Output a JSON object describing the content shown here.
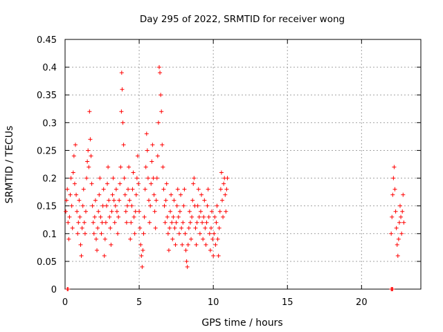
{
  "chart_data": {
    "type": "scatter",
    "title": "Day 295 of 2022, SRMTID for receiver wong",
    "xlabel": "GPS time / hours",
    "ylabel": "SRMTID / TECUs",
    "xlim": [
      0,
      24
    ],
    "ylim": [
      0,
      0.45
    ],
    "xticks": [
      0,
      5,
      10,
      15,
      20
    ],
    "xtick_labels": [
      "0",
      "5",
      "10",
      "15",
      "20"
    ],
    "yticks": [
      0,
      0.05,
      0.1,
      0.15,
      0.2,
      0.25,
      0.3,
      0.35,
      0.4,
      0.45
    ],
    "ytick_labels": [
      "0",
      "0.05",
      "0.1",
      "0.15",
      "0.2",
      "0.25",
      "0.3",
      "0.35",
      "0.4",
      "0.45"
    ],
    "grid": true,
    "marker": "+",
    "marker_color": "#ff0000",
    "series": [
      {
        "name": "SRMTID",
        "points": [
          [
            0.05,
            0.14
          ],
          [
            0.1,
            0.16
          ],
          [
            0.15,
            0.18
          ],
          [
            0.2,
            0.12
          ],
          [
            0.25,
            0.09
          ],
          [
            0.3,
            0.13
          ],
          [
            0.35,
            0.17
          ],
          [
            0.4,
            0.2
          ],
          [
            0.45,
            0.15
          ],
          [
            0.5,
            0.11
          ],
          [
            0.55,
            0.21
          ],
          [
            0.6,
            0.24
          ],
          [
            0.65,
            0.19
          ],
          [
            0.7,
            0.26
          ],
          [
            0.75,
            0.17
          ],
          [
            0.8,
            0.14
          ],
          [
            0.85,
            0.1
          ],
          [
            0.9,
            0.12
          ],
          [
            0.95,
            0.16
          ],
          [
            1.0,
            0.13
          ],
          [
            1.05,
            0.08
          ],
          [
            1.1,
            0.06
          ],
          [
            1.15,
            0.11
          ],
          [
            1.2,
            0.15
          ],
          [
            1.25,
            0.18
          ],
          [
            1.3,
            0.12
          ],
          [
            1.35,
            0.1
          ],
          [
            1.4,
            0.14
          ],
          [
            1.45,
            0.2
          ],
          [
            1.5,
            0.23
          ],
          [
            1.55,
            0.25
          ],
          [
            1.6,
            0.22
          ],
          [
            1.65,
            0.32
          ],
          [
            1.7,
            0.27
          ],
          [
            1.75,
            0.24
          ],
          [
            1.8,
            0.19
          ],
          [
            1.85,
            0.15
          ],
          [
            1.9,
            0.12
          ],
          [
            1.95,
            0.1
          ],
          [
            2.0,
            0.13
          ],
          [
            2.05,
            0.16
          ],
          [
            2.1,
            0.09
          ],
          [
            2.15,
            0.07
          ],
          [
            2.2,
            0.11
          ],
          [
            2.25,
            0.14
          ],
          [
            2.3,
            0.17
          ],
          [
            2.35,
            0.2
          ],
          [
            2.4,
            0.13
          ],
          [
            2.45,
            0.1
          ],
          [
            2.5,
            0.12
          ],
          [
            2.55,
            0.15
          ],
          [
            2.6,
            0.18
          ],
          [
            2.65,
            0.06
          ],
          [
            2.7,
            0.09
          ],
          [
            2.75,
            0.12
          ],
          [
            2.8,
            0.15
          ],
          [
            2.85,
            0.19
          ],
          [
            2.9,
            0.22
          ],
          [
            2.95,
            0.16
          ],
          [
            3.0,
            0.13
          ],
          [
            3.05,
            0.11
          ],
          [
            3.1,
            0.08
          ],
          [
            3.15,
            0.14
          ],
          [
            3.2,
            0.17
          ],
          [
            3.25,
            0.2
          ],
          [
            3.3,
            0.16
          ],
          [
            3.35,
            0.12
          ],
          [
            3.4,
            0.15
          ],
          [
            3.45,
            0.18
          ],
          [
            3.5,
            0.14
          ],
          [
            3.55,
            0.1
          ],
          [
            3.6,
            0.13
          ],
          [
            3.65,
            0.16
          ],
          [
            3.7,
            0.19
          ],
          [
            3.75,
            0.22
          ],
          [
            3.8,
            0.32
          ],
          [
            3.82,
            0.39
          ],
          [
            3.85,
            0.36
          ],
          [
            3.9,
            0.3
          ],
          [
            3.95,
            0.26
          ],
          [
            4.0,
            0.2
          ],
          [
            4.05,
            0.17
          ],
          [
            4.1,
            0.14
          ],
          [
            4.15,
            0.12
          ],
          [
            4.2,
            0.15
          ],
          [
            4.25,
            0.18
          ],
          [
            4.3,
            0.22
          ],
          [
            4.35,
            0.16
          ],
          [
            4.4,
            0.09
          ],
          [
            4.45,
            0.12
          ],
          [
            4.5,
            0.15
          ],
          [
            4.55,
            0.18
          ],
          [
            4.6,
            0.21
          ],
          [
            4.65,
            0.13
          ],
          [
            4.7,
            0.1
          ],
          [
            4.75,
            0.14
          ],
          [
            4.8,
            0.17
          ],
          [
            4.85,
            0.2
          ],
          [
            4.9,
            0.24
          ],
          [
            4.95,
            0.19
          ],
          [
            5.0,
            0.14
          ],
          [
            5.05,
            0.11
          ],
          [
            5.1,
            0.08
          ],
          [
            5.15,
            0.06
          ],
          [
            5.2,
            0.04
          ],
          [
            5.25,
            0.07
          ],
          [
            5.3,
            0.1
          ],
          [
            5.35,
            0.13
          ],
          [
            5.4,
            0.18
          ],
          [
            5.45,
            0.22
          ],
          [
            5.5,
            0.28
          ],
          [
            5.55,
            0.25
          ],
          [
            5.6,
            0.2
          ],
          [
            5.65,
            0.16
          ],
          [
            5.7,
            0.12
          ],
          [
            5.75,
            0.15
          ],
          [
            5.8,
            0.19
          ],
          [
            5.85,
            0.23
          ],
          [
            5.9,
            0.26
          ],
          [
            5.95,
            0.2
          ],
          [
            6.0,
            0.17
          ],
          [
            6.05,
            0.14
          ],
          [
            6.1,
            0.11
          ],
          [
            6.15,
            0.16
          ],
          [
            6.2,
            0.2
          ],
          [
            6.25,
            0.24
          ],
          [
            6.3,
            0.3
          ],
          [
            6.35,
            0.4
          ],
          [
            6.4,
            0.39
          ],
          [
            6.45,
            0.35
          ],
          [
            6.5,
            0.32
          ],
          [
            6.55,
            0.26
          ],
          [
            6.6,
            0.22
          ],
          [
            6.65,
            0.18
          ],
          [
            6.7,
            0.15
          ],
          [
            6.75,
            0.12
          ],
          [
            6.8,
            0.16
          ],
          [
            6.85,
            0.19
          ],
          [
            6.9,
            0.13
          ],
          [
            6.95,
            0.1
          ],
          [
            7.0,
            0.07
          ],
          [
            7.05,
            0.11
          ],
          [
            7.1,
            0.14
          ],
          [
            7.15,
            0.17
          ],
          [
            7.2,
            0.12
          ],
          [
            7.25,
            0.09
          ],
          [
            7.3,
            0.13
          ],
          [
            7.35,
            0.16
          ],
          [
            7.4,
            0.11
          ],
          [
            7.45,
            0.08
          ],
          [
            7.5,
            0.12
          ],
          [
            7.55,
            0.15
          ],
          [
            7.6,
            0.18
          ],
          [
            7.65,
            0.13
          ],
          [
            7.7,
            0.1
          ],
          [
            7.75,
            0.14
          ],
          [
            7.8,
            0.17
          ],
          [
            7.85,
            0.11
          ],
          [
            7.9,
            0.08
          ],
          [
            7.95,
            0.12
          ],
          [
            8.0,
            0.15
          ],
          [
            8.05,
            0.18
          ],
          [
            8.1,
            0.1
          ],
          [
            8.15,
            0.07
          ],
          [
            8.2,
            0.05
          ],
          [
            8.25,
            0.04
          ],
          [
            8.3,
            0.08
          ],
          [
            8.35,
            0.11
          ],
          [
            8.4,
            0.14
          ],
          [
            8.45,
            0.12
          ],
          [
            8.5,
            0.09
          ],
          [
            8.55,
            0.13
          ],
          [
            8.6,
            0.16
          ],
          [
            8.65,
            0.19
          ],
          [
            8.7,
            0.2
          ],
          [
            8.75,
            0.15
          ],
          [
            8.8,
            0.11
          ],
          [
            8.85,
            0.08
          ],
          [
            8.9,
            0.12
          ],
          [
            8.95,
            0.15
          ],
          [
            9.0,
            0.18
          ],
          [
            9.05,
            0.13
          ],
          [
            9.1,
            0.1
          ],
          [
            9.15,
            0.14
          ],
          [
            9.2,
            0.17
          ],
          [
            9.25,
            0.12
          ],
          [
            9.3,
            0.09
          ],
          [
            9.35,
            0.13
          ],
          [
            9.4,
            0.16
          ],
          [
            9.45,
            0.11
          ],
          [
            9.5,
            0.08
          ],
          [
            9.55,
            0.12
          ],
          [
            9.6,
            0.15
          ],
          [
            9.65,
            0.18
          ],
          [
            9.7,
            0.13
          ],
          [
            9.75,
            0.1
          ],
          [
            9.8,
            0.07
          ],
          [
            9.85,
            0.11
          ],
          [
            9.9,
            0.14
          ],
          [
            9.95,
            0.09
          ],
          [
            10.0,
            0.06
          ],
          [
            10.05,
            0.1
          ],
          [
            10.1,
            0.13
          ],
          [
            10.15,
            0.08
          ],
          [
            10.2,
            0.12
          ],
          [
            10.25,
            0.15
          ],
          [
            10.3,
            0.09
          ],
          [
            10.35,
            0.06
          ],
          [
            10.4,
            0.11
          ],
          [
            10.45,
            0.14
          ],
          [
            10.5,
            0.18
          ],
          [
            10.55,
            0.21
          ],
          [
            10.6,
            0.16
          ],
          [
            10.65,
            0.13
          ],
          [
            10.7,
            0.19
          ],
          [
            10.75,
            0.2
          ],
          [
            10.8,
            0.17
          ],
          [
            10.85,
            0.14
          ],
          [
            10.9,
            0.18
          ],
          [
            10.95,
            0.2
          ],
          [
            22.0,
            0.1
          ],
          [
            22.05,
            0.13
          ],
          [
            22.1,
            0.17
          ],
          [
            22.15,
            0.2
          ],
          [
            22.2,
            0.22
          ],
          [
            22.25,
            0.18
          ],
          [
            22.3,
            0.14
          ],
          [
            22.35,
            0.11
          ],
          [
            22.4,
            0.08
          ],
          [
            22.45,
            0.06
          ],
          [
            22.5,
            0.09
          ],
          [
            22.55,
            0.12
          ],
          [
            22.6,
            0.15
          ],
          [
            22.65,
            0.13
          ],
          [
            22.7,
            0.1
          ],
          [
            22.75,
            0.14
          ],
          [
            22.8,
            0.17
          ],
          [
            22.85,
            0.12
          ],
          [
            0.15,
            0.0
          ],
          [
            0.2,
            0.0
          ],
          [
            22.0,
            0.0
          ],
          [
            22.05,
            0.0
          ],
          [
            22.1,
            0.0
          ]
        ]
      }
    ]
  }
}
